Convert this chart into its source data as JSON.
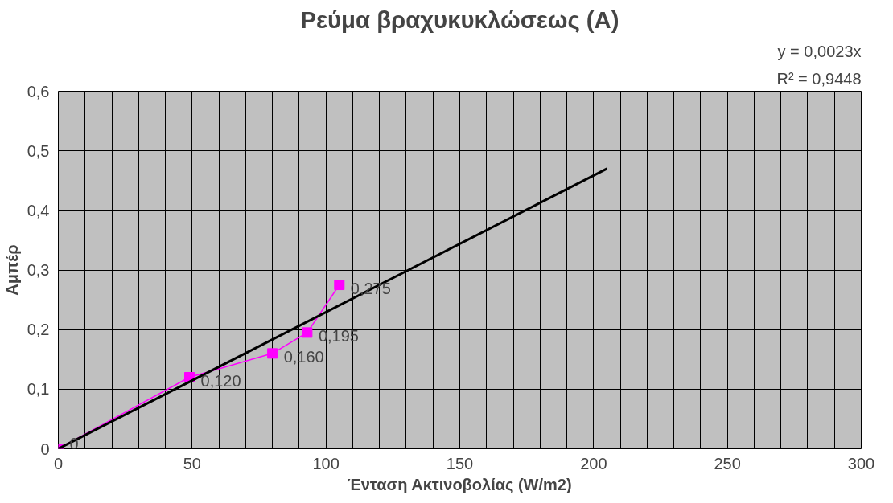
{
  "chart_data": {
    "type": "line",
    "title": "Ρεύμα βραχυκυκλώσεως (A)",
    "xlabel": "Ένταση Ακτινοβολίας (W/m2)",
    "ylabel": "Αμπέρ",
    "annotations": [
      "y = 0,0023x",
      "R² = 0,9448"
    ],
    "x": [
      0,
      49,
      80,
      93,
      105
    ],
    "series": [
      {
        "color": "#ff00ff",
        "values": [
          0,
          0.12,
          0.16,
          0.195,
          0.275
        ],
        "marker": "square",
        "value_labels": [
          "0",
          "0,120",
          "0,160",
          "0,195",
          "0,275"
        ]
      },
      {
        "type": "line",
        "color": "#000000",
        "x": [
          0,
          205
        ],
        "values": [
          0,
          0.47
        ],
        "marker": "none"
      }
    ],
    "xlim": [
      0,
      300
    ],
    "ylim": [
      0,
      0.6
    ],
    "xticks": [
      0,
      {
        "value": 10,
        "label": null
      },
      {
        "value": 20,
        "label": null
      },
      {
        "value": 30,
        "label": null
      },
      {
        "value": 40,
        "label": null
      },
      50,
      {
        "value": 60,
        "label": null
      },
      {
        "value": 70,
        "label": null
      },
      {
        "value": 80,
        "label": null
      },
      {
        "value": 90,
        "label": null
      },
      100,
      {
        "value": 110,
        "label": null
      },
      {
        "value": 120,
        "label": null
      },
      {
        "value": 130,
        "label": null
      },
      {
        "value": 140,
        "label": null
      },
      150,
      {
        "value": 160,
        "label": null
      },
      {
        "value": 170,
        "label": null
      },
      {
        "value": 180,
        "label": null
      },
      {
        "value": 190,
        "label": null
      },
      200,
      {
        "value": 210,
        "label": null
      },
      {
        "value": 220,
        "label": null
      },
      {
        "value": 230,
        "label": null
      },
      {
        "value": 240,
        "label": null
      },
      250,
      {
        "value": 260,
        "label": null
      },
      {
        "value": 270,
        "label": null
      },
      {
        "value": 280,
        "label": null
      },
      {
        "value": 290,
        "label": null
      },
      300
    ],
    "yticks": [
      0,
      {
        "value": 0.1,
        "label": "0,1"
      },
      {
        "value": 0.2,
        "label": "0,2"
      },
      {
        "value": 0.3,
        "label": "0,3"
      },
      {
        "value": 0.4,
        "label": "0,4"
      },
      {
        "value": 0.5,
        "label": "0,5"
      },
      {
        "value": 0.6,
        "label": "0,6"
      }
    ],
    "grid": true
  }
}
